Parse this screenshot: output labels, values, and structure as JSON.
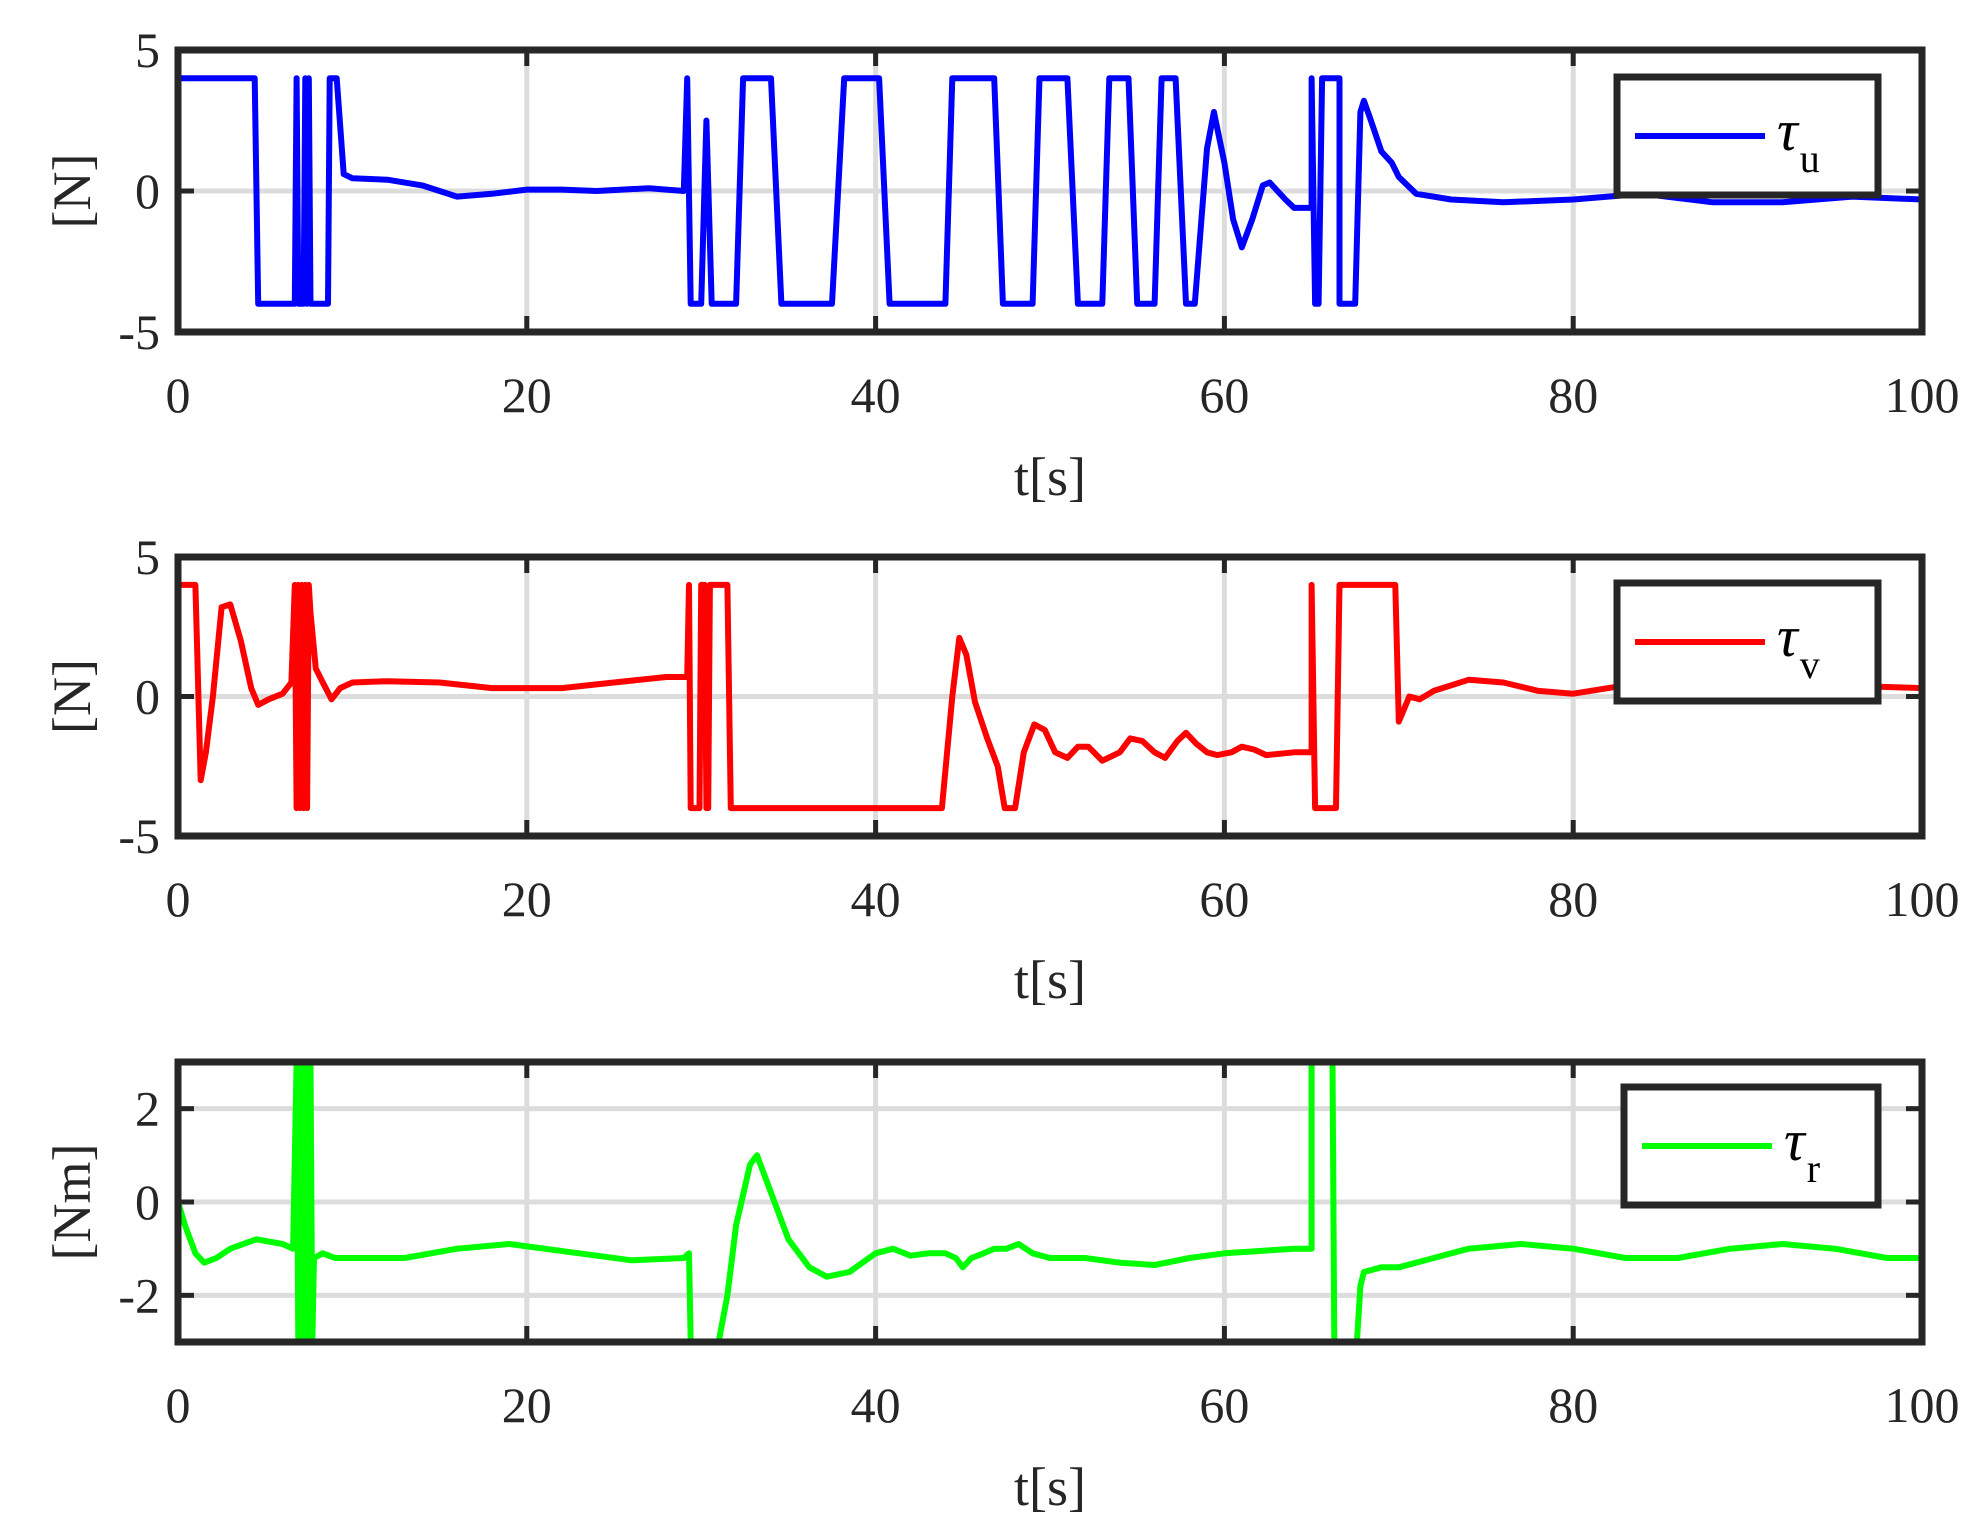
{
  "chart_data": [
    {
      "type": "line",
      "xlabel": "t[s]",
      "ylabel": "[N]",
      "xlim": [
        0,
        100
      ],
      "ylim": [
        -5,
        5
      ],
      "xticks": [
        0,
        20,
        40,
        60,
        80,
        100
      ],
      "yticks": [
        -5,
        0,
        5
      ],
      "grid": true,
      "legend": "top-right",
      "series": [
        {
          "legend_symbol": "τ",
          "legend_subscript": "u",
          "color": "#0000ff",
          "points": [
            [
              0,
              4
            ],
            [
              4.4,
              4
            ],
            [
              4.6,
              -4
            ],
            [
              6.7,
              -4
            ],
            [
              6.8,
              4
            ],
            [
              6.9,
              -4
            ],
            [
              7.2,
              -4
            ],
            [
              7.3,
              4
            ],
            [
              7.4,
              -4
            ],
            [
              7.5,
              4
            ],
            [
              7.6,
              -4
            ],
            [
              8.6,
              -4
            ],
            [
              8.7,
              4
            ],
            [
              9.1,
              4
            ],
            [
              9.5,
              0.6
            ],
            [
              10,
              0.45
            ],
            [
              12,
              0.4
            ],
            [
              14,
              0.2
            ],
            [
              16,
              -0.2
            ],
            [
              18,
              -0.1
            ],
            [
              20,
              0.05
            ],
            [
              22,
              0.05
            ],
            [
              24,
              0
            ],
            [
              27,
              0.1
            ],
            [
              29,
              0
            ],
            [
              29.2,
              4
            ],
            [
              29.4,
              -4
            ],
            [
              30,
              -4
            ],
            [
              30.3,
              2.5
            ],
            [
              30.6,
              -4
            ],
            [
              32,
              -4
            ],
            [
              32.4,
              4
            ],
            [
              34,
              4
            ],
            [
              34.6,
              -4
            ],
            [
              37.5,
              -4
            ],
            [
              38.2,
              4
            ],
            [
              40.2,
              4
            ],
            [
              40.8,
              -4
            ],
            [
              44,
              -4
            ],
            [
              44.4,
              4
            ],
            [
              46.8,
              4
            ],
            [
              47.3,
              -4
            ],
            [
              49,
              -4
            ],
            [
              49.4,
              4
            ],
            [
              51,
              4
            ],
            [
              51.6,
              -4
            ],
            [
              53,
              -4
            ],
            [
              53.4,
              4
            ],
            [
              54.5,
              4
            ],
            [
              55,
              -4
            ],
            [
              56,
              -4
            ],
            [
              56.4,
              4
            ],
            [
              57.2,
              4
            ],
            [
              57.8,
              -4
            ],
            [
              58.3,
              -4
            ],
            [
              59,
              1.5
            ],
            [
              59.4,
              2.8
            ],
            [
              60,
              1
            ],
            [
              60.5,
              -1
            ],
            [
              61,
              -2
            ],
            [
              61.6,
              -1
            ],
            [
              62.2,
              0.2
            ],
            [
              62.6,
              0.3
            ],
            [
              63.5,
              -0.3
            ],
            [
              64,
              -0.6
            ],
            [
              65,
              -0.6
            ],
            [
              65,
              4
            ],
            [
              65.2,
              -4
            ],
            [
              65.4,
              -4
            ],
            [
              65.6,
              4
            ],
            [
              66.6,
              4
            ],
            [
              66.6,
              -4
            ],
            [
              67.5,
              -4
            ],
            [
              67.8,
              2.8
            ],
            [
              68,
              3.2
            ],
            [
              68.4,
              2.5
            ],
            [
              69,
              1.4
            ],
            [
              69.6,
              1
            ],
            [
              70,
              0.5
            ],
            [
              71,
              -0.1
            ],
            [
              73,
              -0.3
            ],
            [
              76,
              -0.4
            ],
            [
              80,
              -0.3
            ],
            [
              84,
              -0.1
            ],
            [
              88,
              -0.4
            ],
            [
              92,
              -0.4
            ],
            [
              96,
              -0.2
            ],
            [
              100,
              -0.3
            ]
          ]
        }
      ]
    },
    {
      "type": "line",
      "xlabel": "t[s]",
      "ylabel": "[N]",
      "xlim": [
        0,
        100
      ],
      "ylim": [
        -5,
        5
      ],
      "xticks": [
        0,
        20,
        40,
        60,
        80,
        100
      ],
      "yticks": [
        -5,
        0,
        5
      ],
      "grid": true,
      "legend": "top-right",
      "series": [
        {
          "legend_symbol": "τ",
          "legend_subscript": "v",
          "color": "#ff0000",
          "points": [
            [
              0,
              4
            ],
            [
              1,
              4
            ],
            [
              1.3,
              -3
            ],
            [
              1.6,
              -2
            ],
            [
              2,
              0
            ],
            [
              2.5,
              3.2
            ],
            [
              3,
              3.3
            ],
            [
              3.6,
              2
            ],
            [
              4.2,
              0.3
            ],
            [
              4.6,
              -0.3
            ],
            [
              5.2,
              -0.1
            ],
            [
              6,
              0.1
            ],
            [
              6.5,
              0.5
            ],
            [
              6.7,
              4
            ],
            [
              6.8,
              -4
            ],
            [
              6.9,
              4
            ],
            [
              7,
              -4
            ],
            [
              7.1,
              4
            ],
            [
              7.2,
              -4
            ],
            [
              7.3,
              4
            ],
            [
              7.4,
              -4
            ],
            [
              7.5,
              4
            ],
            [
              7.6,
              3
            ],
            [
              7.9,
              1
            ],
            [
              8.3,
              0.5
            ],
            [
              8.8,
              -0.1
            ],
            [
              9.3,
              0.3
            ],
            [
              10,
              0.5
            ],
            [
              12,
              0.55
            ],
            [
              15,
              0.5
            ],
            [
              18,
              0.3
            ],
            [
              22,
              0.3
            ],
            [
              25,
              0.5
            ],
            [
              28,
              0.7
            ],
            [
              29.2,
              0.7
            ],
            [
              29.3,
              4
            ],
            [
              29.4,
              -4
            ],
            [
              29.9,
              -4
            ],
            [
              30,
              4
            ],
            [
              30.2,
              4
            ],
            [
              30.3,
              -4
            ],
            [
              30.4,
              -4
            ],
            [
              30.5,
              4
            ],
            [
              31.5,
              4
            ],
            [
              31.7,
              -4
            ],
            [
              43.8,
              -4
            ],
            [
              44.4,
              0
            ],
            [
              44.8,
              2.1
            ],
            [
              45.2,
              1.5
            ],
            [
              45.7,
              -0.2
            ],
            [
              46.4,
              -1.5
            ],
            [
              47,
              -2.5
            ],
            [
              47.4,
              -4
            ],
            [
              48,
              -4
            ],
            [
              48.5,
              -2
            ],
            [
              49.1,
              -1
            ],
            [
              49.7,
              -1.2
            ],
            [
              50.3,
              -2
            ],
            [
              51,
              -2.2
            ],
            [
              51.6,
              -1.8
            ],
            [
              52.2,
              -1.8
            ],
            [
              53,
              -2.3
            ],
            [
              54,
              -2
            ],
            [
              54.6,
              -1.5
            ],
            [
              55.3,
              -1.6
            ],
            [
              56,
              -2
            ],
            [
              56.6,
              -2.2
            ],
            [
              57.3,
              -1.6
            ],
            [
              57.8,
              -1.3
            ],
            [
              58.4,
              -1.7
            ],
            [
              59,
              -2
            ],
            [
              59.6,
              -2.1
            ],
            [
              60.4,
              -2
            ],
            [
              61,
              -1.8
            ],
            [
              61.7,
              -1.9
            ],
            [
              62.4,
              -2.1
            ],
            [
              64,
              -2
            ],
            [
              65,
              -2
            ],
            [
              65,
              4
            ],
            [
              65.2,
              -4
            ],
            [
              66.4,
              -4
            ],
            [
              66.6,
              4
            ],
            [
              69.8,
              4
            ],
            [
              70,
              -0.9
            ],
            [
              70.6,
              0
            ],
            [
              71.2,
              -0.1
            ],
            [
              72,
              0.2
            ],
            [
              74,
              0.6
            ],
            [
              76,
              0.5
            ],
            [
              78,
              0.2
            ],
            [
              80,
              0.1
            ],
            [
              83,
              0.4
            ],
            [
              87,
              0.4
            ],
            [
              91,
              0.4
            ],
            [
              95,
              0.4
            ],
            [
              100,
              0.3
            ]
          ]
        }
      ]
    },
    {
      "type": "line",
      "xlabel": "t[s]",
      "ylabel": "[Nm]",
      "xlim": [
        0,
        100
      ],
      "ylim": [
        -3,
        3
      ],
      "xticks": [
        0,
        20,
        40,
        60,
        80,
        100
      ],
      "yticks": [
        -2,
        0,
        2
      ],
      "grid": true,
      "legend": "top-right",
      "series": [
        {
          "legend_symbol": "τ",
          "legend_subscript": "r",
          "color": "#00ff00",
          "points": [
            [
              0,
              0
            ],
            [
              0.4,
              -0.5
            ],
            [
              1,
              -1.1
            ],
            [
              1.5,
              -1.3
            ],
            [
              2.2,
              -1.2
            ],
            [
              3,
              -1
            ],
            [
              4.5,
              -0.8
            ],
            [
              6,
              -0.9
            ],
            [
              6.6,
              -1
            ],
            [
              6.8,
              3
            ],
            [
              6.9,
              -3
            ],
            [
              7,
              3
            ],
            [
              7.1,
              -3
            ],
            [
              7.2,
              3
            ],
            [
              7.3,
              -3
            ],
            [
              7.4,
              3
            ],
            [
              7.5,
              -3
            ],
            [
              7.6,
              3
            ],
            [
              7.7,
              -3
            ],
            [
              7.8,
              -1.2
            ],
            [
              8.3,
              -1.1
            ],
            [
              9,
              -1.2
            ],
            [
              10,
              -1.2
            ],
            [
              13,
              -1.2
            ],
            [
              16,
              -1
            ],
            [
              19,
              -0.9
            ],
            [
              23,
              -1.1
            ],
            [
              26,
              -1.25
            ],
            [
              29,
              -1.2
            ],
            [
              29.3,
              -1.1
            ],
            [
              29.4,
              -3
            ],
            [
              31,
              -3
            ],
            [
              31.5,
              -2
            ],
            [
              32,
              -0.5
            ],
            [
              32.8,
              0.8
            ],
            [
              33.2,
              1
            ],
            [
              34,
              0.2
            ],
            [
              35,
              -0.8
            ],
            [
              36.2,
              -1.4
            ],
            [
              37.2,
              -1.6
            ],
            [
              38.5,
              -1.5
            ],
            [
              40,
              -1.1
            ],
            [
              41,
              -1
            ],
            [
              42,
              -1.15
            ],
            [
              43,
              -1.1
            ],
            [
              44,
              -1.1
            ],
            [
              44.6,
              -1.2
            ],
            [
              45,
              -1.4
            ],
            [
              45.5,
              -1.2
            ],
            [
              46.2,
              -1.1
            ],
            [
              46.8,
              -1
            ],
            [
              47.5,
              -1
            ],
            [
              48.2,
              -0.9
            ],
            [
              49,
              -1.1
            ],
            [
              50,
              -1.2
            ],
            [
              51,
              -1.2
            ],
            [
              52,
              -1.2
            ],
            [
              54,
              -1.3
            ],
            [
              56,
              -1.35
            ],
            [
              58,
              -1.2
            ],
            [
              60,
              -1.1
            ],
            [
              62,
              -1.05
            ],
            [
              64,
              -1
            ],
            [
              65,
              -1
            ],
            [
              65,
              3
            ],
            [
              66.2,
              3
            ],
            [
              66.3,
              -3
            ],
            [
              67.6,
              -3
            ],
            [
              67.8,
              -1.8
            ],
            [
              68,
              -1.5
            ],
            [
              69,
              -1.4
            ],
            [
              70,
              -1.4
            ],
            [
              72,
              -1.2
            ],
            [
              74,
              -1
            ],
            [
              77,
              -0.9
            ],
            [
              80,
              -1
            ],
            [
              83,
              -1.2
            ],
            [
              86,
              -1.2
            ],
            [
              89,
              -1
            ],
            [
              92,
              -0.9
            ],
            [
              95,
              -1
            ],
            [
              98,
              -1.2
            ],
            [
              100,
              -1.2
            ]
          ]
        }
      ]
    }
  ]
}
